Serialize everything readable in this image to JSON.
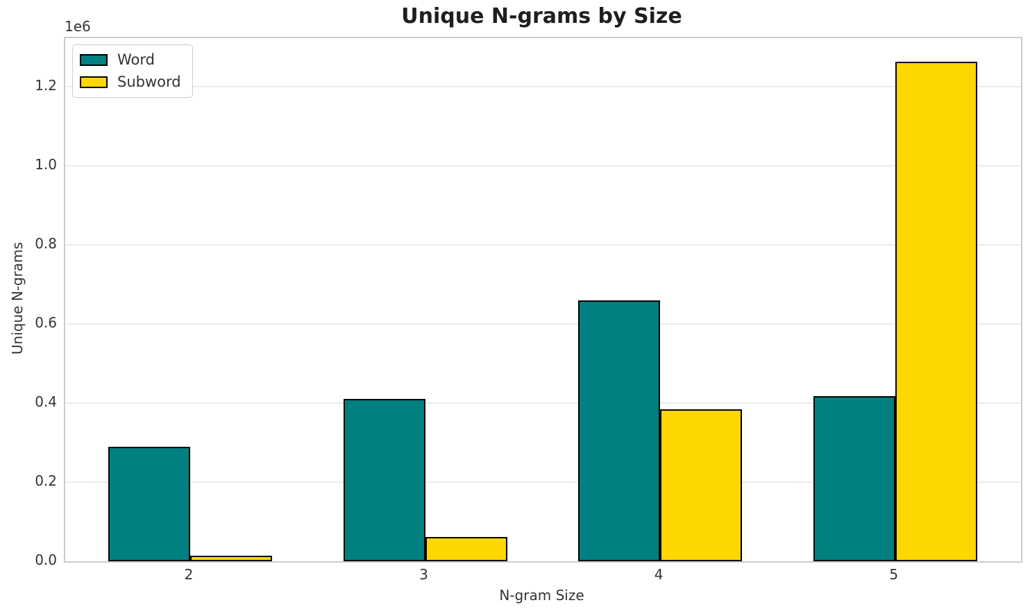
{
  "chart_data": {
    "type": "bar",
    "title": "Unique N-grams by Size",
    "xlabel": "N-gram Size",
    "ylabel": "Unique N-grams",
    "y_offset_text": "1e6",
    "categories": [
      "2",
      "3",
      "4",
      "5"
    ],
    "series": [
      {
        "name": "Word",
        "color": "#008080",
        "values": [
          290000,
          410000,
          660000,
          418000
        ]
      },
      {
        "name": "Subword",
        "color": "#FFD700",
        "values": [
          13500,
          62000,
          385000,
          1263000
        ]
      }
    ],
    "bar_edge_color": "#000000",
    "ylim": [
      0,
      1323000
    ],
    "yticks": [
      0,
      200000,
      400000,
      600000,
      800000,
      1000000,
      1200000
    ],
    "ytick_labels": [
      "0.0",
      "0.2",
      "0.4",
      "0.6",
      "0.8",
      "1.0",
      "1.2"
    ],
    "grid": true,
    "legend_position": "upper left",
    "legend_labels": [
      "Word",
      "Subword"
    ]
  },
  "colors": {
    "bar_word": "#008080",
    "bar_subword": "#FFD700",
    "bar_edge": "#000000",
    "grid": "#ebebeb",
    "spine": "#cccccc",
    "text": "#333333",
    "title_text": "#1f1f1f",
    "background": "#ffffff"
  }
}
